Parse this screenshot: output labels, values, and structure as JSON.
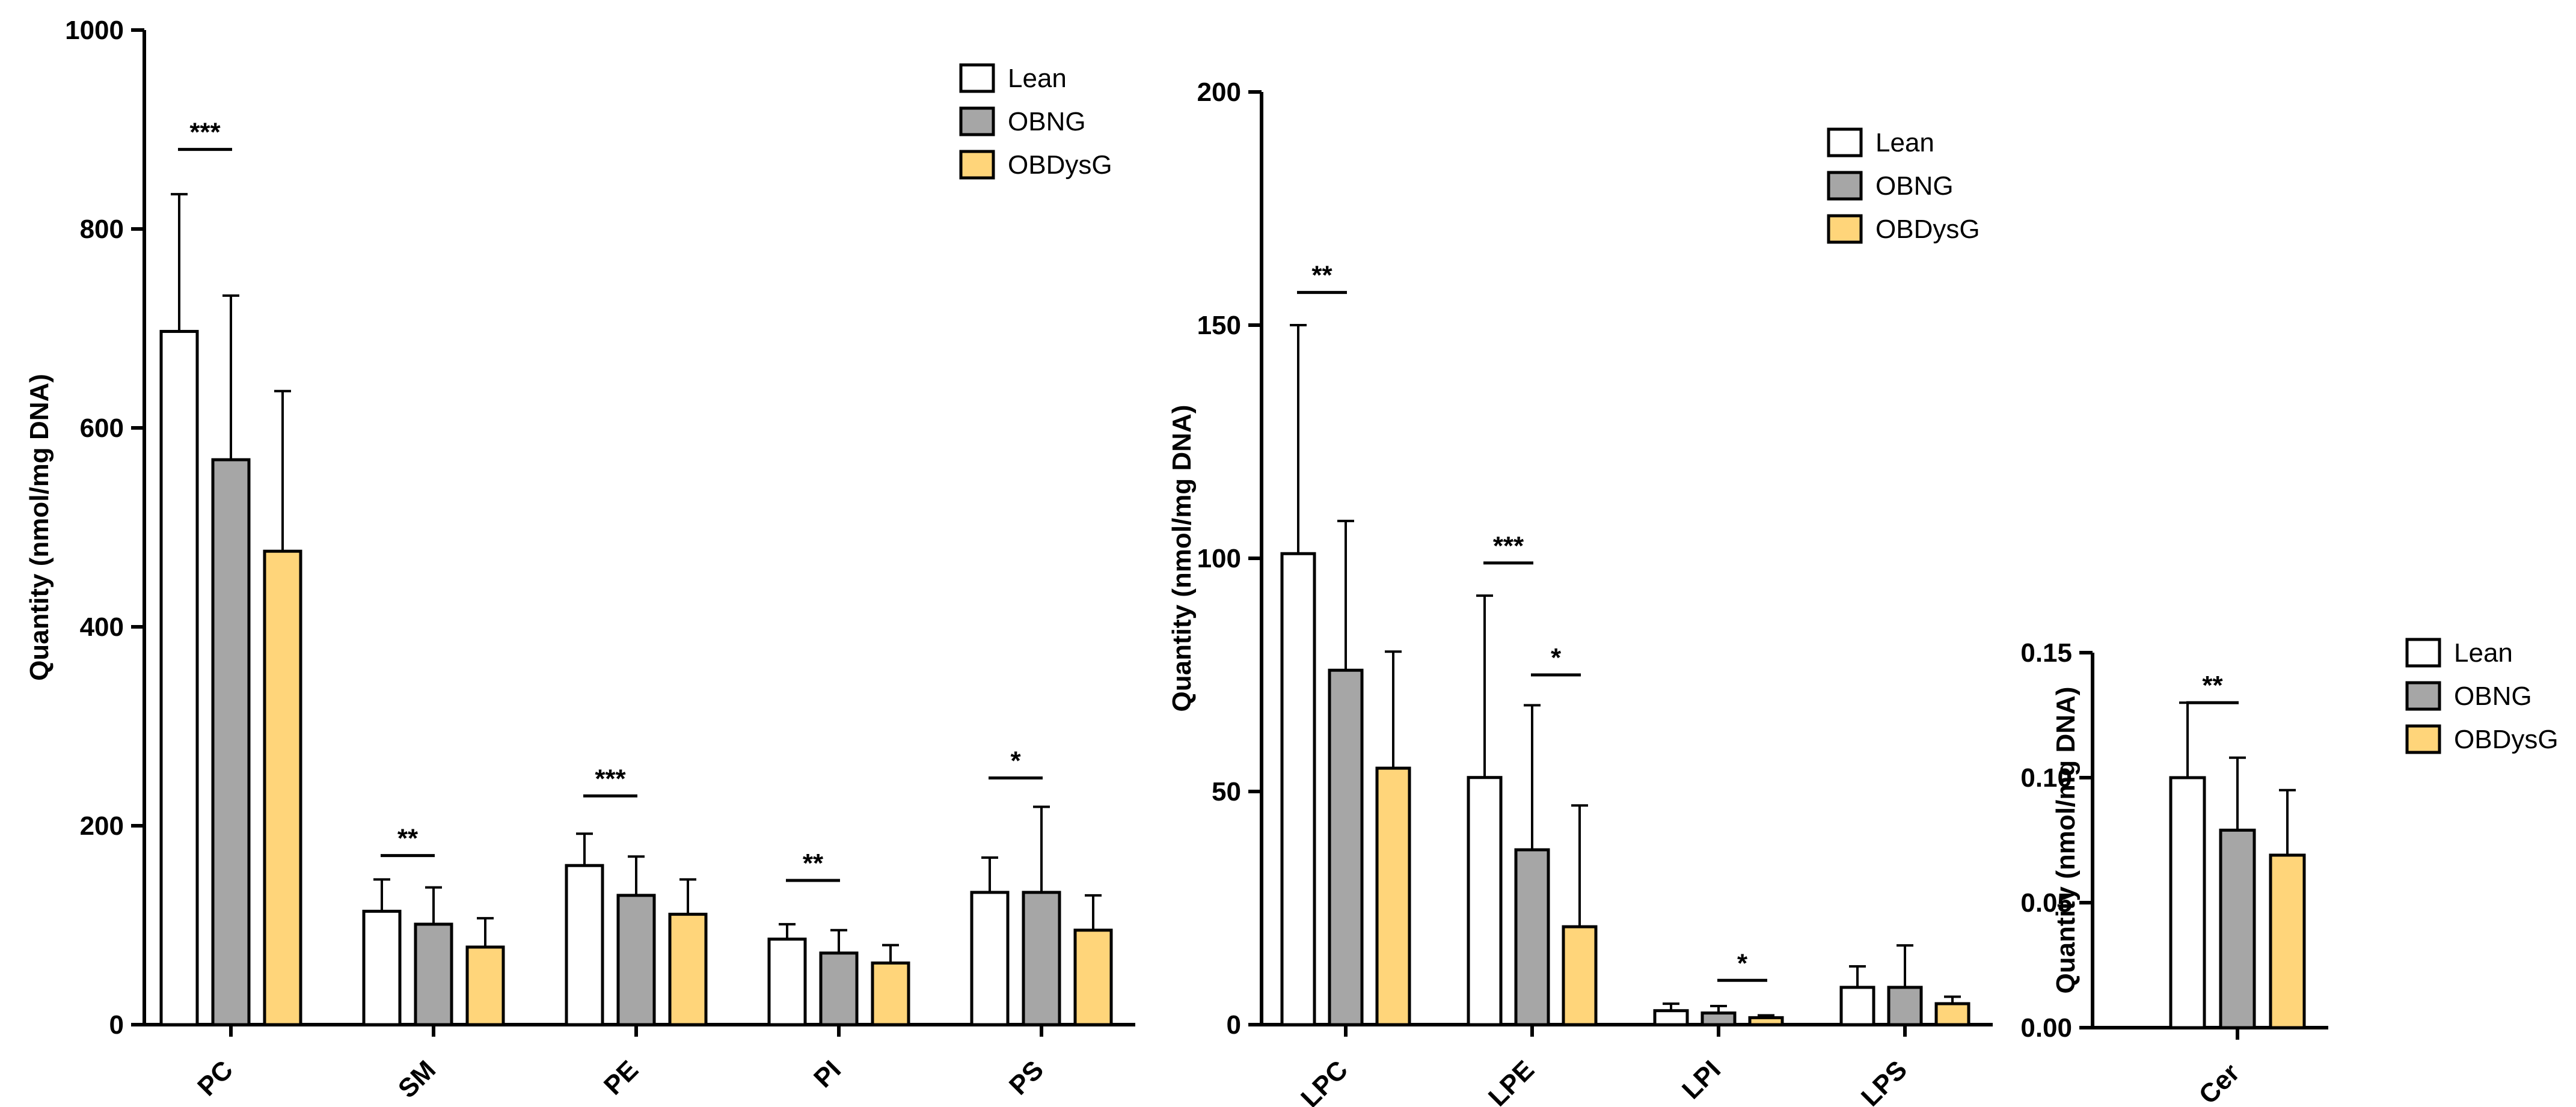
{
  "colors": {
    "Lean": "#ffffff",
    "OBNG": "#a6a6a6",
    "OBDysG": "#ffd57a",
    "stroke": "#000000"
  },
  "chart_data": [
    {
      "type": "bar",
      "title": "",
      "xlabel": "",
      "ylabel": "Quantity (nmol/mg DNA)",
      "ylim": [
        0,
        1000
      ],
      "yticks": [
        0,
        200,
        400,
        600,
        800,
        1000
      ],
      "ytick_labels": [
        "0",
        "200",
        "400",
        "600",
        "800",
        "1000"
      ],
      "categories": [
        "PC",
        "SM",
        "PE",
        "PI",
        "PS"
      ],
      "series": [
        {
          "name": "Lean",
          "values": [
            697,
            114,
            160,
            86,
            133
          ],
          "errors": [
            138,
            32,
            32,
            15,
            35
          ]
        },
        {
          "name": "OBNG",
          "values": [
            568,
            101,
            130,
            72,
            133
          ],
          "errors": [
            165,
            37,
            39,
            23,
            86
          ]
        },
        {
          "name": "OBDysG",
          "values": [
            476,
            78,
            111,
            62,
            95
          ],
          "errors": [
            161,
            29,
            35,
            18,
            35
          ]
        }
      ],
      "significance": [
        {
          "category": "PC",
          "from": "Lean",
          "to": "OBNG",
          "level": 880,
          "label": "***"
        },
        {
          "category": "SM",
          "from": "Lean",
          "to": "OBNG",
          "level": 170,
          "label": "**"
        },
        {
          "category": "PE",
          "from": "Lean",
          "to": "OBNG",
          "level": 230,
          "label": "***"
        },
        {
          "category": "PI",
          "from": "Lean",
          "to": "OBNG",
          "level": 145,
          "label": "**"
        },
        {
          "category": "PS",
          "from": "Lean",
          "to": "OBNG",
          "level": 248,
          "label": "*"
        }
      ],
      "legend": [
        "Lean",
        "OBNG",
        "OBDysG"
      ],
      "legend_position": "top-right"
    },
    {
      "type": "bar",
      "title": "",
      "xlabel": "",
      "ylabel": "Quantity (nmol/mg DNA)",
      "ylim": [
        0,
        200
      ],
      "yticks": [
        0,
        50,
        100,
        150,
        200
      ],
      "ytick_labels": [
        "0",
        "50",
        "100",
        "150",
        "200"
      ],
      "categories": [
        "LPC",
        "LPE",
        "LPI",
        "LPS"
      ],
      "series": [
        {
          "name": "Lean",
          "values": [
            101,
            53,
            3,
            8
          ],
          "errors": [
            49,
            39,
            1.5,
            4.5
          ]
        },
        {
          "name": "OBNG",
          "values": [
            76,
            37.5,
            2.5,
            8
          ],
          "errors": [
            32,
            31,
            1.5,
            9
          ]
        },
        {
          "name": "OBDysG",
          "values": [
            55,
            21,
            1.5,
            4.5
          ],
          "errors": [
            25,
            26,
            0.5,
            1.5
          ]
        }
      ],
      "significance": [
        {
          "category": "LPC",
          "from": "Lean",
          "to": "OBNG",
          "level": 157,
          "label": "**"
        },
        {
          "category": "LPE",
          "from": "Lean",
          "to": "OBNG",
          "level": 99,
          "label": "***"
        },
        {
          "category": "LPE",
          "from": "OBNG",
          "to": "OBDysG",
          "level": 75,
          "label": "*"
        },
        {
          "category": "LPI",
          "from": "OBNG",
          "to": "OBDysG",
          "level": 9.5,
          "label": "*"
        }
      ],
      "legend": [
        "Lean",
        "OBNG",
        "OBDysG"
      ],
      "legend_position": "top-right"
    },
    {
      "type": "bar",
      "title": "",
      "xlabel": "",
      "ylabel": "Quantity (nmol/mg DNA)",
      "ylim": [
        0,
        0.15
      ],
      "yticks": [
        0,
        0.05,
        0.1,
        0.15
      ],
      "ytick_labels": [
        "0.00",
        "0.05",
        "0.10",
        "0.15"
      ],
      "categories": [
        "Cer"
      ],
      "series": [
        {
          "name": "Lean",
          "values": [
            0.1
          ],
          "errors": [
            0.03
          ]
        },
        {
          "name": "OBNG",
          "values": [
            0.079
          ],
          "errors": [
            0.029
          ]
        },
        {
          "name": "OBDysG",
          "values": [
            0.069
          ],
          "errors": [
            0.026
          ]
        }
      ],
      "significance": [
        {
          "category": "Cer",
          "from": "Lean",
          "to": "OBNG",
          "level": 0.13,
          "label": "**"
        }
      ],
      "legend": [
        "Lean",
        "OBNG",
        "OBDysG"
      ],
      "legend_position": "right"
    }
  ]
}
